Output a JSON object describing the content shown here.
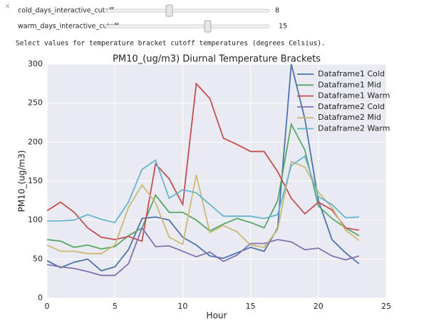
{
  "widgets": [
    {
      "label": "cold_days_interactive_cutoff",
      "value": 8
    },
    {
      "label": "warm_days_interactive_cutoff",
      "value": 15
    }
  ],
  "description": "Select values for temperature bracket cutoff temperatures (degrees Celsius).",
  "chart_data": {
    "type": "line",
    "title": "PM10_(ug/m3) Diurnal Temperature Brackets",
    "x_label": "Hour",
    "y_label": "PM10_(ug/m3)",
    "x": [
      0,
      1,
      2,
      3,
      4,
      5,
      6,
      7,
      8,
      9,
      10,
      11,
      12,
      13,
      14,
      15,
      16,
      17,
      18,
      19,
      20,
      21,
      22,
      23
    ],
    "xlim": [
      0,
      25
    ],
    "xticks": [
      0,
      5,
      10,
      15,
      20,
      25
    ],
    "ylim": [
      0,
      300
    ],
    "yticks": [
      0,
      50,
      100,
      150,
      200,
      250,
      300
    ],
    "grid": true,
    "legend": "upper-right",
    "series": [
      {
        "name": "Dataframe1 Cold",
        "color": "#4c72b0",
        "values": [
          48,
          39,
          46,
          50,
          35,
          40,
          62,
          102,
          104,
          100,
          78,
          68,
          54,
          51,
          58,
          65,
          60,
          90,
          300,
          230,
          125,
          75,
          58,
          44
        ]
      },
      {
        "name": "Dataframe1 Mid",
        "color": "#55a868",
        "values": [
          75,
          73,
          65,
          68,
          63,
          66,
          80,
          90,
          132,
          110,
          110,
          100,
          86,
          95,
          102,
          97,
          90,
          125,
          223,
          190,
          118,
          102,
          90,
          80
        ]
      },
      {
        "name": "Dataframe1 Warm",
        "color": "#c44e52",
        "values": [
          112,
          123,
          110,
          90,
          78,
          75,
          79,
          73,
          172,
          153,
          120,
          275,
          256,
          205,
          197,
          188,
          188,
          162,
          128,
          108,
          123,
          113,
          90,
          87
        ]
      },
      {
        "name": "Dataframe2 Cold",
        "color": "#8172b2",
        "values": [
          43,
          40,
          38,
          34,
          29,
          29,
          44,
          90,
          66,
          67,
          60,
          53,
          59,
          47,
          55,
          70,
          70,
          75,
          72,
          62,
          64,
          54,
          49,
          54
        ]
      },
      {
        "name": "Dataframe2 Mid",
        "color": "#ccb974",
        "values": [
          68,
          60,
          60,
          57,
          57,
          68,
          116,
          145,
          122,
          78,
          69,
          158,
          84,
          93,
          85,
          68,
          65,
          88,
          175,
          168,
          136,
          116,
          87,
          74
        ]
      },
      {
        "name": "Dataframe2 Warm",
        "color": "#64b5cd",
        "values": [
          99,
          99,
          100,
          107,
          101,
          97,
          123,
          165,
          177,
          128,
          139,
          135,
          120,
          105,
          105,
          105,
          102,
          107,
          170,
          182,
          130,
          120,
          103,
          104
        ]
      }
    ]
  }
}
